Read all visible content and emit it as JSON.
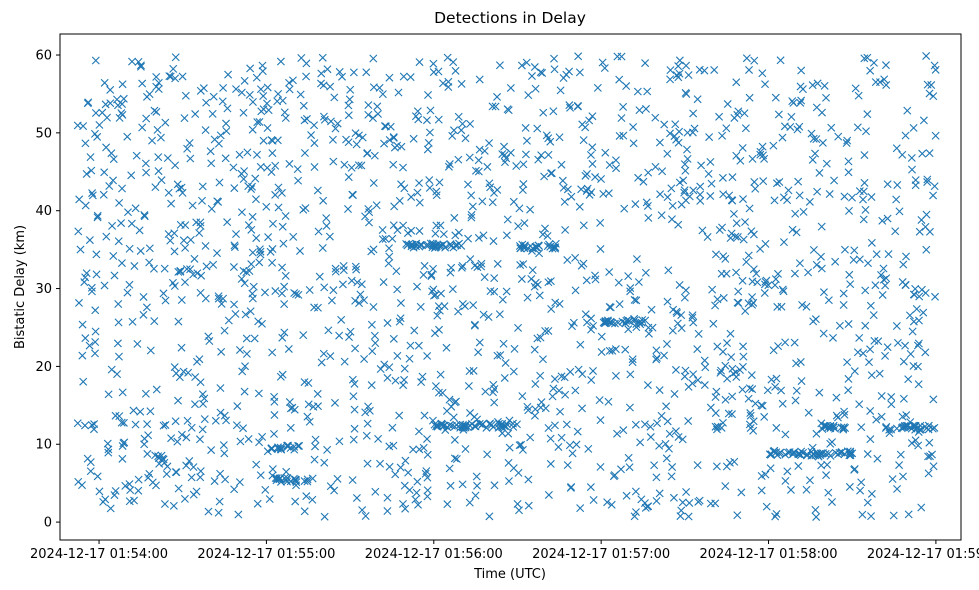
{
  "chart_data": {
    "type": "scatter",
    "title": "Detections in Delay",
    "xlabel": "Time (UTC)",
    "ylabel": "Bistatic Delay (km)",
    "x_unit": "time",
    "x_ticks": [
      "2024-12-17 01:54:00",
      "2024-12-17 01:55:00",
      "2024-12-17 01:56:00",
      "2024-12-17 01:57:00",
      "2024-12-17 01:58:00",
      "2024-12-17 01:59:00"
    ],
    "y_ticks": [
      "0",
      "10",
      "20",
      "30",
      "40",
      "50",
      "60"
    ],
    "xlim": [
      "2024-12-17 01:53:46",
      "2024-12-17 01:59:09"
    ],
    "ylim": [
      -2.3,
      62.7
    ],
    "grid": false,
    "marker": "x",
    "color": "#1f77b4",
    "clusters": [
      {
        "x_start": "2024-12-17 01:54:21",
        "x_end": "2024-12-17 01:54:24",
        "y": 8.3
      },
      {
        "x_start": "2024-12-17 01:55:01",
        "x_end": "2024-12-17 01:55:12",
        "y": 9.6
      },
      {
        "x_start": "2024-12-17 01:55:03",
        "x_end": "2024-12-17 01:55:17",
        "y": 5.4
      },
      {
        "x_start": "2024-12-17 01:55:50",
        "x_end": "2024-12-17 01:56:10",
        "y": 35.5
      },
      {
        "x_start": "2024-12-17 01:56:30",
        "x_end": "2024-12-17 01:56:44",
        "y": 35.4
      },
      {
        "x_start": "2024-12-17 01:56:00",
        "x_end": "2024-12-17 01:56:30",
        "y": 12.4
      },
      {
        "x_start": "2024-12-17 01:57:00",
        "x_end": "2024-12-17 01:57:16",
        "y": 25.7
      },
      {
        "x_start": "2024-12-17 01:58:00",
        "x_end": "2024-12-17 01:58:30",
        "y": 8.8
      },
      {
        "x_start": "2024-12-17 01:58:18",
        "x_end": "2024-12-17 01:58:28",
        "y": 12.1
      },
      {
        "x_start": "2024-12-17 01:58:42",
        "x_end": "2024-12-17 01:59:00",
        "y": 12.1
      }
    ]
  }
}
